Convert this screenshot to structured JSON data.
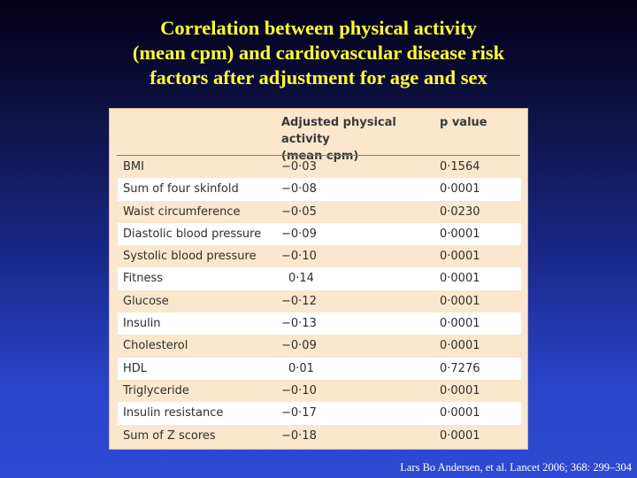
{
  "slide": {
    "title_lines": [
      "Correlation between physical activity",
      "(mean cpm) and cardiovascular disease risk",
      "factors after adjustment for age and sex"
    ],
    "citation": "Lars Bo Andersen, et al. Lancet 2006; 368: 299–304"
  },
  "table": {
    "headers": {
      "factor": "",
      "activity_line1": "Adjusted physical activity",
      "activity_line2": "(mean cpm)",
      "pvalue": "p value"
    },
    "rows": [
      {
        "factor": "BMI",
        "activity": "−0·03",
        "pvalue": "0·1564"
      },
      {
        "factor": "Sum of four skinfold",
        "activity": "−0·08",
        "pvalue": "0·0001"
      },
      {
        "factor": "Waist circumference",
        "activity": "−0·05",
        "pvalue": "0·0230"
      },
      {
        "factor": "Diastolic blood pressure",
        "activity": "−0·09",
        "pvalue": "0·0001"
      },
      {
        "factor": "Systolic blood pressure",
        "activity": "−0·10",
        "pvalue": "0·0001"
      },
      {
        "factor": "Fitness",
        "activity": "0·14",
        "pvalue": "0·0001"
      },
      {
        "factor": "Glucose",
        "activity": "−0·12",
        "pvalue": "0·0001"
      },
      {
        "factor": "Insulin",
        "activity": "−0·13",
        "pvalue": "0·0001"
      },
      {
        "factor": "Cholesterol",
        "activity": "−0·09",
        "pvalue": "0·0001"
      },
      {
        "factor": "HDL",
        "activity": "0·01",
        "pvalue": "0·7276"
      },
      {
        "factor": "Triglyceride",
        "activity": "−0·10",
        "pvalue": "0·0001"
      },
      {
        "factor": "Insulin resistance",
        "activity": "−0·17",
        "pvalue": "0·0001"
      },
      {
        "factor": "Sum of Z scores",
        "activity": "−0·18",
        "pvalue": "0·0001"
      }
    ]
  },
  "colors": {
    "title": "#ffff33",
    "panel": "#fbe7cd",
    "stripe": "#ffffff",
    "citation": "#ffffff"
  }
}
